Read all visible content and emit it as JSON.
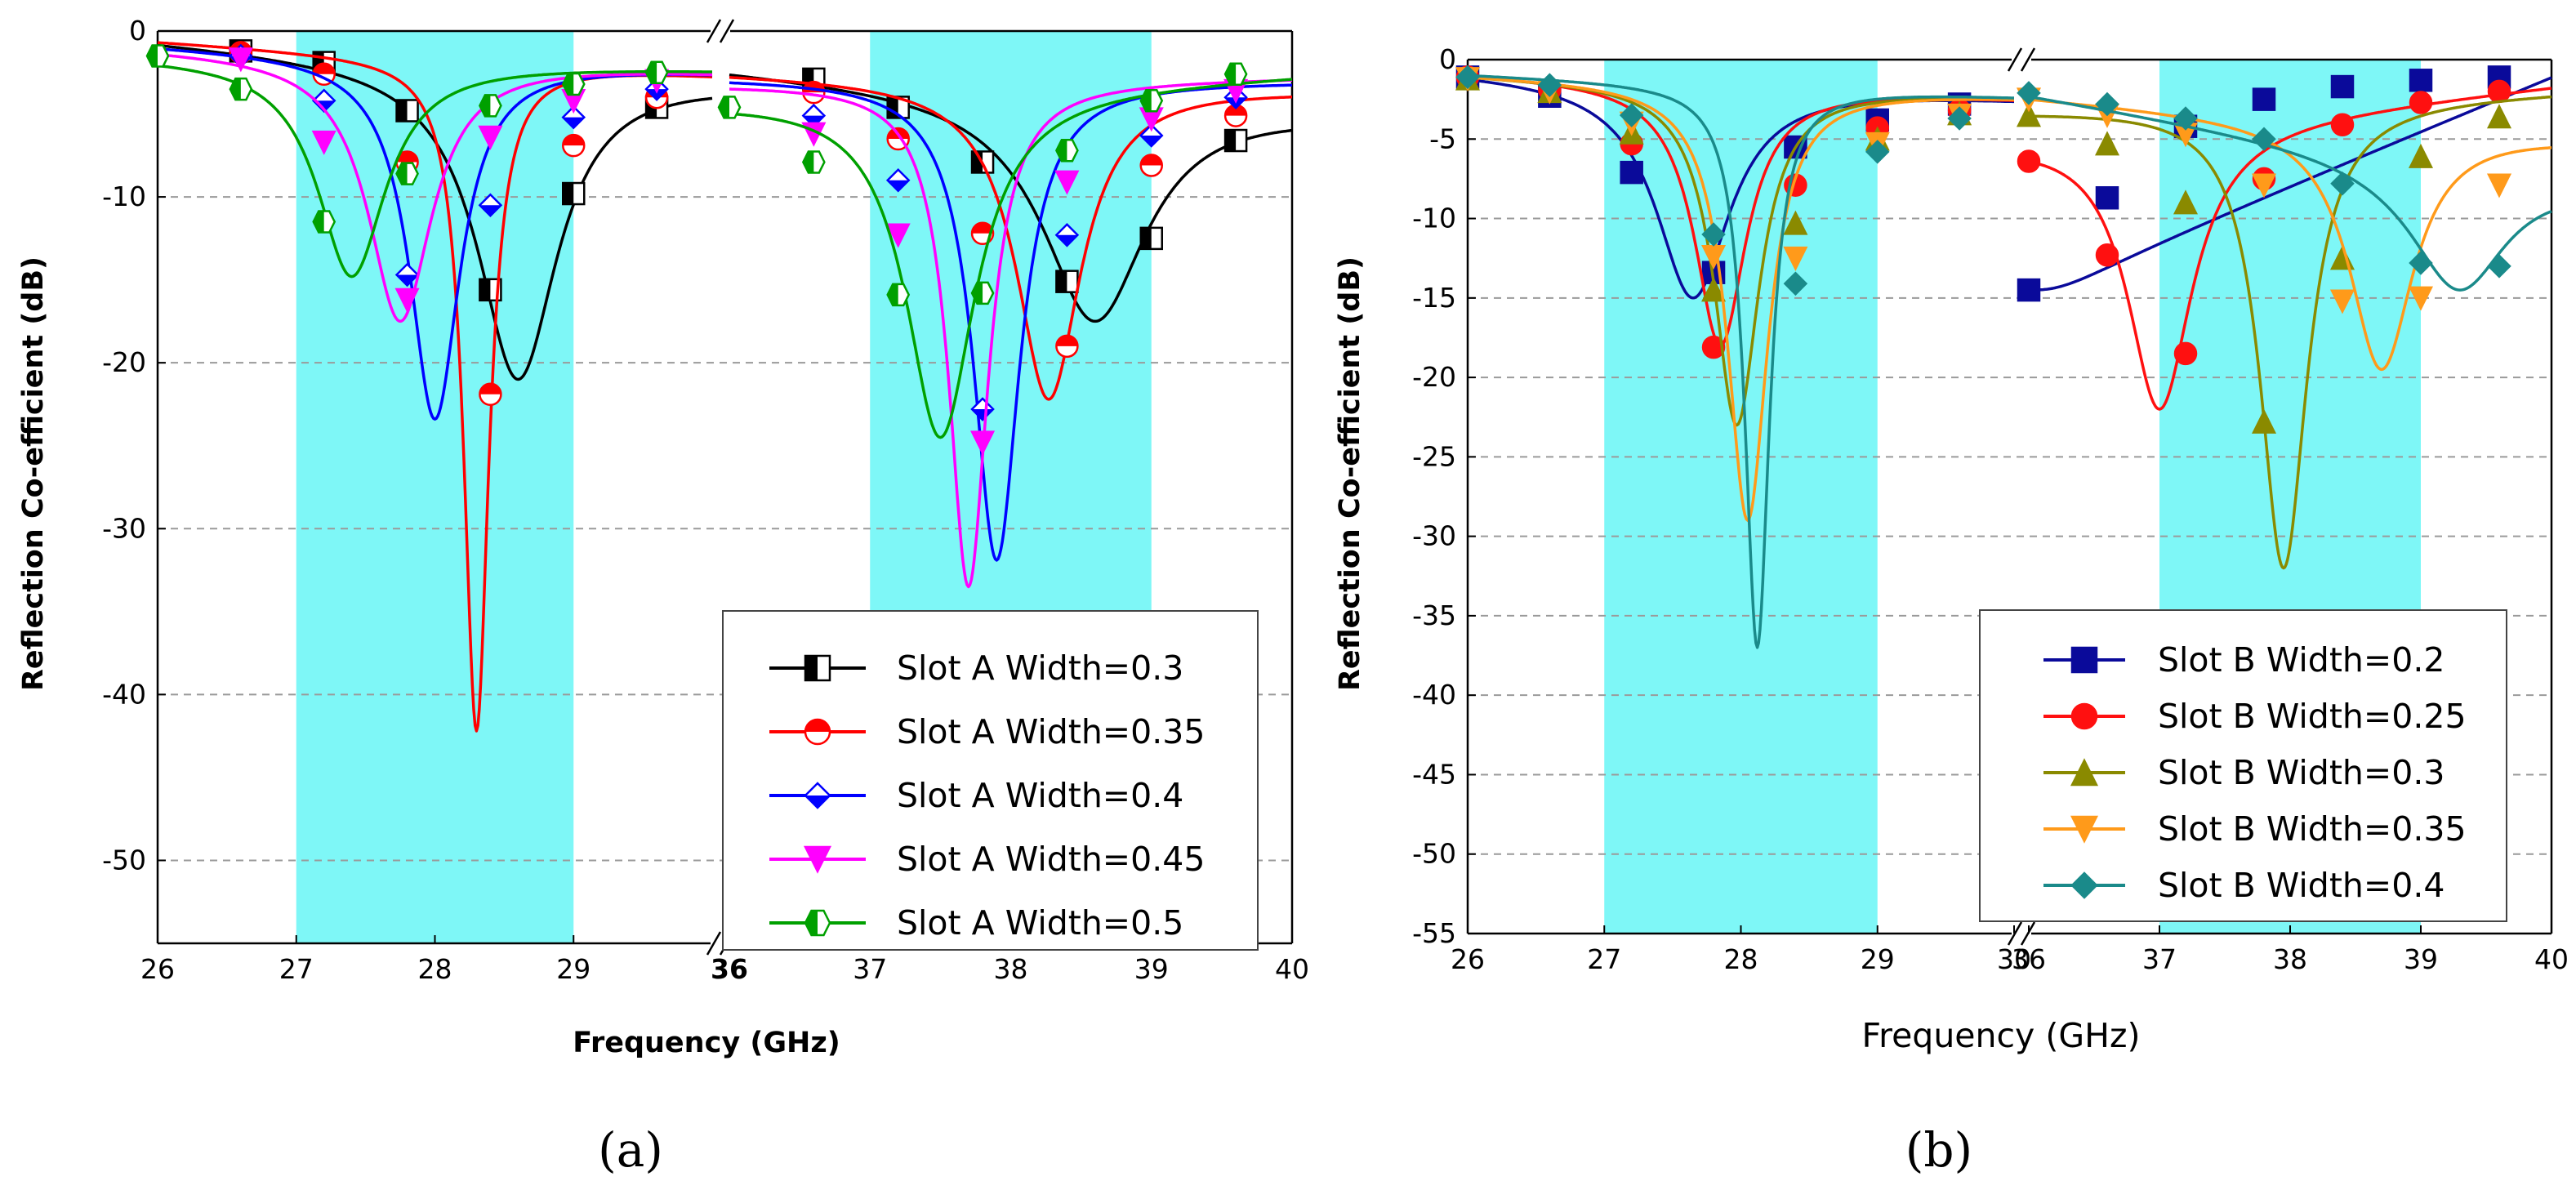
{
  "colors": {
    "band": "#7ef7f7",
    "grid": "#9a9a9a"
  },
  "chart_data": [
    {
      "panel_label": "(a)",
      "type": "line",
      "xlabel": "Frequency (GHz)",
      "ylabel": "Reflection Co-efficient (dB)",
      "ylim": [
        -55,
        0
      ],
      "yticks": [
        0,
        -10,
        -20,
        -30,
        -40,
        -50
      ],
      "ytick_labels": [
        "0",
        "-10",
        "-20",
        "-30",
        "-40",
        "-50"
      ],
      "grid": "horizontal dashed",
      "axis_break": "between 30 and 36 GHz",
      "segments": [
        {
          "xlim": [
            26,
            30
          ],
          "xticks": [
            26,
            27,
            28,
            29
          ],
          "xtick_labels": [
            "26",
            "27",
            "28",
            "29"
          ],
          "band": [
            27,
            29
          ]
        },
        {
          "xlim": [
            36,
            40
          ],
          "xticks": [
            36,
            37,
            38,
            39,
            40
          ],
          "xtick_labels": [
            "36",
            "37",
            "38",
            "39",
            "40"
          ],
          "band": [
            37,
            39
          ]
        }
      ],
      "legend_position": "bottom-right",
      "series": [
        {
          "name": "Slot A Width=0.3",
          "color": "#000000",
          "marker": "half-square",
          "band1": {
            "f0": 28.6,
            "dip": -21.0,
            "w": 0.35,
            "start": -0.5,
            "end": -3.0
          },
          "band2": {
            "f0": 38.6,
            "dip": -17.5,
            "w": 0.45,
            "start": -2.2,
            "end": -4.8
          },
          "markers1": [
            [
              26.6,
              -1.2
            ],
            [
              27.2,
              -1.9
            ],
            [
              27.8,
              -4.8
            ],
            [
              28.4,
              -15.6
            ],
            [
              29.0,
              -9.8
            ],
            [
              29.6,
              -4.6
            ]
          ],
          "markers2": [
            [
              36.6,
              -2.9
            ],
            [
              37.2,
              -4.6
            ],
            [
              37.8,
              -7.9
            ],
            [
              38.4,
              -15.1
            ],
            [
              39.0,
              -12.5
            ],
            [
              39.6,
              -6.6
            ]
          ]
        },
        {
          "name": "Slot A Width=0.35",
          "color": "#ff0000",
          "marker": "half-circle",
          "band1": {
            "f0": 28.3,
            "dip": -42.2,
            "w": 0.11,
            "start": -0.6,
            "end": -2.6
          },
          "band2": {
            "f0": 38.27,
            "dip": -22.2,
            "w": 0.28,
            "start": -2.5,
            "end": -3.5
          },
          "markers1": [
            [
              26.6,
              -1.3
            ],
            [
              27.2,
              -2.6
            ],
            [
              27.8,
              -7.9
            ],
            [
              28.4,
              -21.9
            ],
            [
              29.0,
              -6.9
            ],
            [
              29.6,
              -4.0
            ]
          ],
          "markers2": [
            [
              36.6,
              -3.7
            ],
            [
              37.2,
              -6.5
            ],
            [
              37.8,
              -12.2
            ],
            [
              38.4,
              -19.0
            ],
            [
              39.0,
              -8.1
            ],
            [
              39.6,
              -5.1
            ]
          ]
        },
        {
          "name": "Slot A Width=0.4",
          "color": "#0000ff",
          "marker": "half-diamond",
          "band1": {
            "f0": 28.0,
            "dip": -23.4,
            "w": 0.22,
            "start": -0.8,
            "end": -2.4
          },
          "band2": {
            "f0": 37.9,
            "dip": -31.9,
            "w": 0.2,
            "start": -2.8,
            "end": -3.0
          },
          "markers1": [
            [
              26.6,
              -1.5
            ],
            [
              27.2,
              -4.2
            ],
            [
              27.8,
              -14.7
            ],
            [
              28.4,
              -10.5
            ],
            [
              29.0,
              -5.2
            ],
            [
              29.6,
              -3.5
            ]
          ],
          "markers2": [
            [
              36.6,
              -5.1
            ],
            [
              37.2,
              -9.0
            ],
            [
              37.8,
              -22.8
            ],
            [
              38.4,
              -12.3
            ],
            [
              39.0,
              -6.3
            ],
            [
              39.6,
              -4.0
            ]
          ]
        },
        {
          "name": "Slot A Width=0.45",
          "color": "#ff00ff",
          "marker": "triangle-down",
          "band1": {
            "f0": 27.75,
            "dip": -17.5,
            "w": 0.28,
            "start": -1.0,
            "end": -2.4
          },
          "band2": {
            "f0": 37.7,
            "dip": -33.5,
            "w": 0.17,
            "start": -3.2,
            "end": -2.8
          },
          "markers1": [
            [
              26.6,
              -1.7
            ],
            [
              27.2,
              -6.7
            ],
            [
              27.8,
              -16.2
            ],
            [
              28.4,
              -6.4
            ],
            [
              29.0,
              -4.2
            ],
            [
              29.6,
              -3.0
            ]
          ],
          "markers2": [
            [
              36.6,
              -6.2
            ],
            [
              37.2,
              -12.3
            ],
            [
              37.8,
              -24.8
            ],
            [
              38.4,
              -9.1
            ],
            [
              39.0,
              -5.3
            ],
            [
              39.6,
              -3.6
            ]
          ]
        },
        {
          "name": "Slot A Width=0.5",
          "color": "#00a000",
          "marker": "half-hexagon",
          "band1": {
            "f0": 27.4,
            "dip": -14.8,
            "w": 0.3,
            "start": -1.5,
            "end": -2.3
          },
          "band2": {
            "f0": 37.5,
            "dip": -24.5,
            "w": 0.3,
            "start": -4.2,
            "end": -2.6
          },
          "markers1": [
            [
              26.0,
              -1.5
            ],
            [
              26.6,
              -3.5
            ],
            [
              27.2,
              -11.5
            ],
            [
              27.8,
              -8.6
            ],
            [
              28.4,
              -4.5
            ],
            [
              29.0,
              -3.2
            ],
            [
              29.6,
              -2.5
            ]
          ],
          "markers2": [
            [
              36.0,
              -4.6
            ],
            [
              36.6,
              -7.9
            ],
            [
              37.2,
              -15.9
            ],
            [
              37.8,
              -15.8
            ],
            [
              38.4,
              -7.2
            ],
            [
              39.0,
              -4.2
            ],
            [
              39.6,
              -2.6
            ]
          ]
        }
      ]
    },
    {
      "panel_label": "(b)",
      "type": "line",
      "xlabel": "Frequency  (GHz)",
      "ylabel": "Reflection Co-efficient (dB)",
      "ylim": [
        -55,
        0
      ],
      "yticks": [
        0,
        -5,
        -10,
        -15,
        -20,
        -25,
        -30,
        -35,
        -40,
        -45,
        -50,
        -55
      ],
      "ytick_labels": [
        "0",
        "-5",
        "-10",
        "-15",
        "-20",
        "-25",
        "-30",
        "-35",
        "-40",
        "-45",
        "-50",
        "-55"
      ],
      "grid": "horizontal dashed",
      "axis_break": "between 30 and 36 GHz",
      "segments": [
        {
          "xlim": [
            26,
            30
          ],
          "xticks": [
            26,
            27,
            28,
            29,
            30
          ],
          "xtick_labels": [
            "26",
            "27",
            "28",
            "29",
            "30"
          ],
          "band": [
            27,
            29
          ]
        },
        {
          "xlim": [
            36,
            40
          ],
          "xticks": [
            36,
            37,
            38,
            39,
            40
          ],
          "xtick_labels": [
            "36",
            "37",
            "38",
            "39",
            "40"
          ],
          "band": [
            37,
            39
          ]
        }
      ],
      "legend_position": "bottom-right",
      "series": [
        {
          "name": "Slot B Width=0.2",
          "color": "#0a0a9a",
          "marker": "square",
          "band1": {
            "f0": 27.65,
            "dip": -15.0,
            "w": 0.33,
            "start": -0.7,
            "end": -2.4
          },
          "band2": {
            "f0": 36.0,
            "dip": -14.5,
            "w": 0.4,
            "start": -14.5,
            "end": -1.0
          },
          "markers1": [
            [
              26.0,
              -1.1
            ],
            [
              26.6,
              -2.3
            ],
            [
              27.2,
              -7.1
            ],
            [
              27.8,
              -13.4
            ],
            [
              28.4,
              -5.5
            ],
            [
              29.0,
              -3.8
            ],
            [
              29.6,
              -2.8
            ]
          ],
          "markers2": [
            [
              36.0,
              -14.5
            ],
            [
              36.6,
              -8.7
            ],
            [
              37.2,
              -4.2
            ],
            [
              37.8,
              -2.5
            ],
            [
              38.4,
              -1.7
            ],
            [
              39.0,
              -1.3
            ],
            [
              39.6,
              -1.1
            ]
          ]
        },
        {
          "name": "Slot B Width=0.25",
          "color": "#ff1010",
          "marker": "circle",
          "band1": {
            "f0": 27.85,
            "dip": -18.0,
            "w": 0.23,
            "start": -0.8,
            "end": -2.4
          },
          "band2": {
            "f0": 37.0,
            "dip": -22.0,
            "w": 0.3,
            "start": -5.0,
            "end": -1.6
          },
          "markers1": [
            [
              26.0,
              -1.1
            ],
            [
              26.6,
              -1.9
            ],
            [
              27.2,
              -5.3
            ],
            [
              27.8,
              -18.1
            ],
            [
              28.4,
              -7.9
            ],
            [
              29.0,
              -4.3
            ],
            [
              29.6,
              -3.2
            ]
          ],
          "markers2": [
            [
              36.0,
              -6.4
            ],
            [
              36.6,
              -12.3
            ],
            [
              37.2,
              -18.5
            ],
            [
              37.8,
              -7.5
            ],
            [
              38.4,
              -4.1
            ],
            [
              39.0,
              -2.7
            ],
            [
              39.6,
              -2.0
            ]
          ]
        },
        {
          "name": "Slot B Width=0.3",
          "color": "#8a8a00",
          "marker": "triangle-up",
          "band1": {
            "f0": 27.97,
            "dip": -23.0,
            "w": 0.2,
            "start": -0.9,
            "end": -2.3
          },
          "band2": {
            "f0": 37.95,
            "dip": -32.0,
            "w": 0.22,
            "start": -3.2,
            "end": -2.0
          },
          "markers1": [
            [
              26.0,
              -1.2
            ],
            [
              26.6,
              -2.0
            ],
            [
              27.2,
              -4.6
            ],
            [
              27.8,
              -14.5
            ],
            [
              28.4,
              -10.3
            ],
            [
              29.0,
              -5.0
            ],
            [
              29.6,
              -3.4
            ]
          ],
          "markers2": [
            [
              36.0,
              -3.5
            ],
            [
              36.6,
              -5.3
            ],
            [
              37.2,
              -9.0
            ],
            [
              37.8,
              -22.8
            ],
            [
              38.4,
              -12.5
            ],
            [
              39.0,
              -6.1
            ],
            [
              39.6,
              -3.6
            ]
          ]
        },
        {
          "name": "Slot B Width=0.35",
          "color": "#ff9a1a",
          "marker": "triangle-down",
          "band1": {
            "f0": 28.05,
            "dip": -29.0,
            "w": 0.18,
            "start": -0.9,
            "end": -2.3
          },
          "band2": {
            "f0": 38.7,
            "dip": -19.5,
            "w": 0.3,
            "start": -2.3,
            "end": -4.8
          },
          "markers1": [
            [
              26.0,
              -1.2
            ],
            [
              26.6,
              -2.0
            ],
            [
              27.2,
              -4.0
            ],
            [
              27.8,
              -12.4
            ],
            [
              28.4,
              -12.5
            ],
            [
              29.0,
              -5.3
            ],
            [
              29.6,
              -3.5
            ]
          ],
          "markers2": [
            [
              36.0,
              -2.5
            ],
            [
              36.6,
              -3.5
            ],
            [
              37.2,
              -4.7
            ],
            [
              37.8,
              -7.9
            ],
            [
              38.4,
              -15.2
            ],
            [
              39.0,
              -15.0
            ],
            [
              39.6,
              -7.9
            ]
          ]
        },
        {
          "name": "Slot B Width=0.4",
          "color": "#1a8a8a",
          "marker": "diamond",
          "band1": {
            "f0": 28.12,
            "dip": -37.0,
            "w": 0.11,
            "start": -0.9,
            "end": -2.3
          },
          "band2": {
            "f0": 39.3,
            "dip": -14.5,
            "w": 0.45,
            "start": -2.1,
            "end": -7.5
          },
          "markers1": [
            [
              26.0,
              -1.1
            ],
            [
              26.6,
              -1.6
            ],
            [
              27.2,
              -3.5
            ],
            [
              27.8,
              -11.0
            ],
            [
              28.4,
              -14.1
            ],
            [
              29.0,
              -5.8
            ],
            [
              29.6,
              -3.7
            ]
          ],
          "markers2": [
            [
              36.0,
              -2.1
            ],
            [
              36.6,
              -2.8
            ],
            [
              37.2,
              -3.7
            ],
            [
              37.8,
              -5.0
            ],
            [
              38.4,
              -7.8
            ],
            [
              39.0,
              -12.8
            ],
            [
              39.6,
              -13.0
            ]
          ]
        }
      ]
    }
  ]
}
